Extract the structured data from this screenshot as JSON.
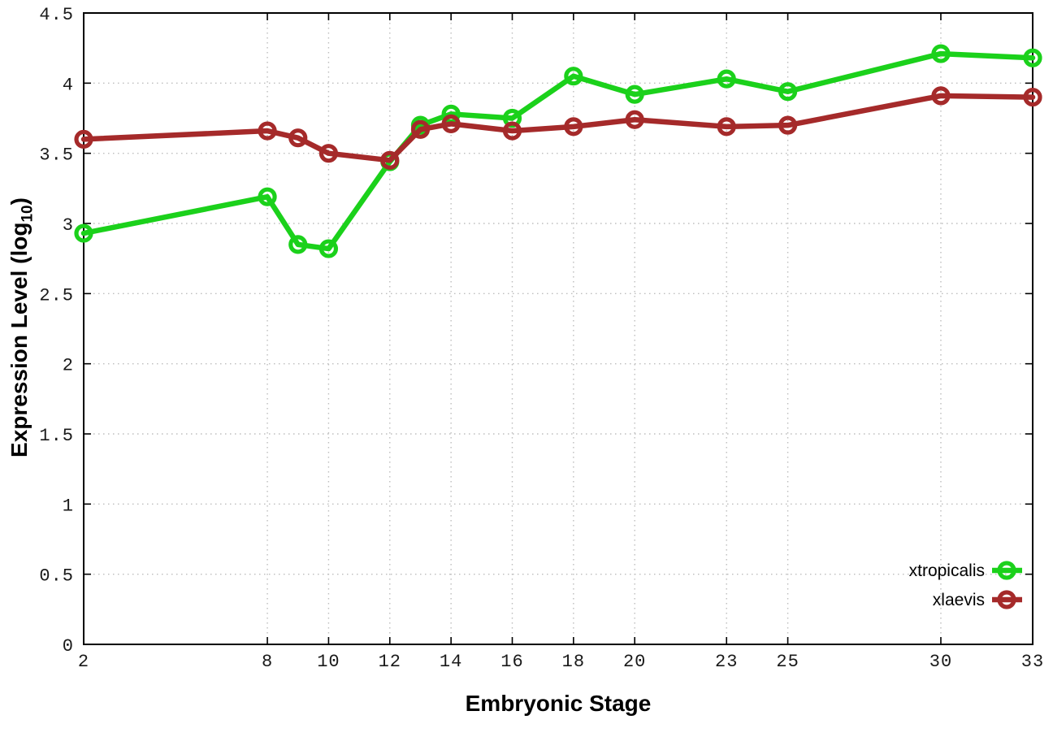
{
  "chart_data": {
    "type": "line",
    "title": "",
    "xlabel": "Embryonic Stage",
    "ylabel": "Expression Level (log10)",
    "ylabel_parts": {
      "main": "Expression Level (log",
      "subscript": "10",
      "end": ")"
    },
    "xlim": [
      2,
      33
    ],
    "ylim": [
      0,
      4.5
    ],
    "grid": true,
    "legend_position": "bottom-right",
    "x_ticks": [
      2,
      8,
      10,
      12,
      14,
      16,
      18,
      20,
      23,
      25,
      30,
      33
    ],
    "x_tick_labels": [
      "2",
      "8",
      "10",
      "12",
      "14",
      "16",
      "18",
      "20",
      "23",
      "25",
      "30",
      "33"
    ],
    "y_ticks": [
      0,
      0.5,
      1,
      1.5,
      2,
      2.5,
      3,
      3.5,
      4,
      4.5
    ],
    "y_tick_labels": [
      "0",
      "0.5",
      "1",
      "1.5",
      "2",
      "2.5",
      "3",
      "3.5",
      "4",
      "4.5"
    ],
    "x": [
      2,
      8,
      9,
      10,
      12,
      13,
      14,
      16,
      18,
      20,
      23,
      25,
      30,
      33
    ],
    "series": [
      {
        "name": "xtropicalis",
        "color": "#1bd11b",
        "marker": "open-circle",
        "values": [
          2.93,
          3.19,
          2.85,
          2.82,
          3.44,
          3.7,
          3.78,
          3.75,
          4.05,
          3.92,
          4.03,
          3.94,
          4.21,
          4.18
        ]
      },
      {
        "name": "xlaevis",
        "color": "#a52a2a",
        "marker": "open-circle",
        "values": [
          3.6,
          3.66,
          3.61,
          3.5,
          3.45,
          3.67,
          3.71,
          3.66,
          3.69,
          3.74,
          3.69,
          3.7,
          3.91,
          3.9
        ]
      }
    ]
  },
  "style": {
    "background": "#ffffff",
    "grid_color": "#bdbdbd",
    "axis_color": "#000000",
    "tick_label_color": "#1a1a1a"
  }
}
